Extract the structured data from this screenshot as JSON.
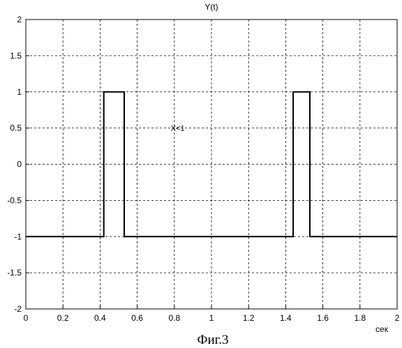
{
  "chart_data": {
    "type": "line",
    "title": "Y(t)",
    "xlabel": "сек",
    "ylabel": "",
    "xlim": [
      0,
      2
    ],
    "ylim": [
      -2,
      2
    ],
    "grid": true,
    "x_ticks": [
      0,
      0.2,
      0.4,
      0.6,
      0.8,
      1,
      1.2,
      1.4,
      1.6,
      1.8,
      2
    ],
    "x_tick_labels": [
      "0",
      "0.2",
      "0.4",
      "0.6",
      "0.8",
      "1",
      "1.2",
      "1.4",
      "1.6",
      "1.8",
      "2"
    ],
    "y_ticks": [
      -2,
      -1.5,
      -1,
      -0.5,
      0,
      0.5,
      1,
      1.5,
      2
    ],
    "y_tick_labels": [
      "-2",
      "-1.5",
      "-1",
      "-0.5",
      "0",
      "0.5",
      "1",
      "1.5",
      "2"
    ],
    "series": [
      {
        "x": [
          0,
          0.42,
          0.42,
          0.53,
          0.53,
          1.44,
          1.44,
          1.53,
          1.53,
          2
        ],
        "y": [
          -1,
          -1,
          1,
          1,
          -1,
          -1,
          1,
          1,
          -1,
          -1
        ]
      }
    ],
    "annotations": [
      {
        "text": "X<1",
        "x": 0.8,
        "y": 0.5
      }
    ]
  },
  "caption": "Фиг.3"
}
